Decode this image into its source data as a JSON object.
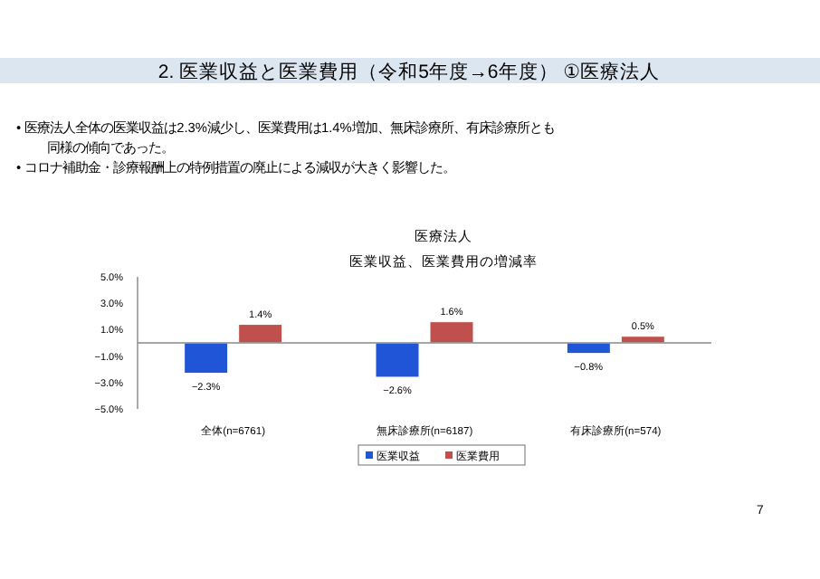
{
  "chart_data": {
    "type": "bar",
    "title": "医療法人",
    "subtitle": "医業収益、医業費用の増減率",
    "annotations": [
      "2. 医業収益と医業費用（令和5年度→6年度） ①医療法人",
      "• 医療法人全体の医業収益は2.3%減少し、医業費用は1.4%増加、無床診療所、有床診療所とも同様の傾向であった。",
      "• コロナ補助金・診療報酬上の特例措置の廃止による減収が大きく影響した。",
      "7"
    ],
    "categories": [
      "全体(n=6761)",
      "無床診療所(n=6187)",
      "有床診療所(n=574)"
    ],
    "series": [
      {
        "name": "医業収益",
        "color": "#1f55d6",
        "values": [
          -2.3,
          -2.6,
          -0.8
        ],
        "value_labels": [
          "−2.3%",
          "−2.6%",
          "−0.8%"
        ]
      },
      {
        "name": "医業費用",
        "color": "#c0504d",
        "values": [
          1.4,
          1.6,
          0.5
        ],
        "value_labels": [
          "1.4%",
          "1.6%",
          "0.5%"
        ]
      }
    ],
    "ylim": [
      -5,
      5
    ],
    "yticks": [
      {
        "value": 5,
        "label": "5.0%"
      },
      {
        "value": 3,
        "label": "3.0%"
      },
      {
        "value": 1,
        "label": "1.0%"
      },
      {
        "value": -1,
        "label": "−1.0%"
      },
      {
        "value": -3,
        "label": "−3.0%"
      },
      {
        "value": -5,
        "label": "−5.0%"
      }
    ],
    "grid": false,
    "legend": "bottom"
  }
}
